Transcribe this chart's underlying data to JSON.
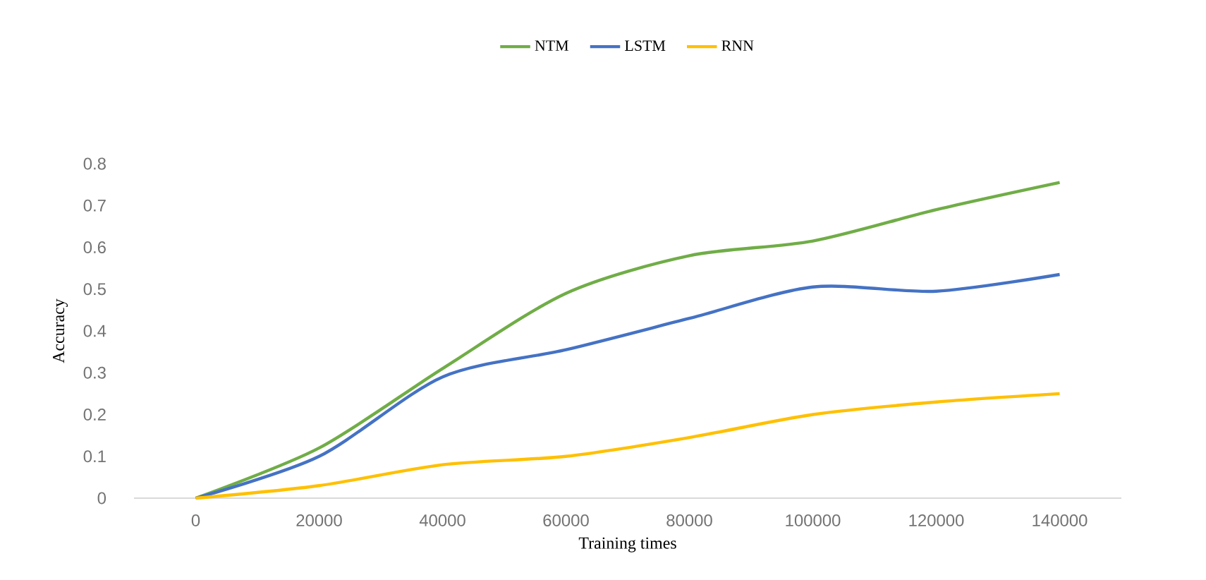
{
  "chart_data": {
    "type": "line",
    "xlabel": "Training times",
    "ylabel": "Accuracy",
    "categories": [
      "0",
      "20000",
      "40000",
      "60000",
      "80000",
      "100000",
      "120000",
      "140000"
    ],
    "series": [
      {
        "name": "NTM",
        "color": "#70ad47",
        "values": [
          0,
          0.12,
          0.31,
          0.49,
          0.58,
          0.615,
          0.69,
          0.755
        ]
      },
      {
        "name": "LSTM",
        "color": "#4472c4",
        "values": [
          0,
          0.1,
          0.29,
          0.355,
          0.43,
          0.505,
          0.495,
          0.535
        ]
      },
      {
        "name": "RNN",
        "color": "#ffc000",
        "values": [
          0,
          0.03,
          0.08,
          0.1,
          0.145,
          0.2,
          0.23,
          0.25
        ]
      }
    ],
    "ylim": [
      0,
      0.8
    ],
    "yticks": [
      0,
      0.1,
      0.2,
      0.3,
      0.4,
      0.5,
      0.6,
      0.7,
      0.8
    ],
    "legend": "top",
    "grid": false,
    "marker": "none",
    "line_style": "solid"
  }
}
